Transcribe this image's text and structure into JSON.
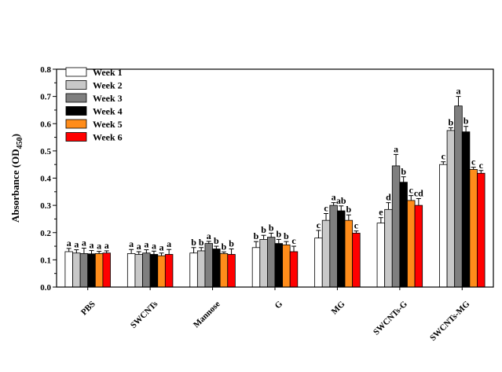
{
  "chart_data": {
    "type": "bar",
    "title": "",
    "xlabel": "",
    "ylabel": "Absorbance (OD",
    "ylabel_subscript": "450",
    "ylabel_close": ")",
    "ylim": [
      0.0,
      0.8
    ],
    "yticks": [
      "0.0",
      "0.1",
      "0.2",
      "0.3",
      "0.4",
      "0.5",
      "0.6",
      "0.7",
      "0.8"
    ],
    "grid": false,
    "legend_position": "top-left",
    "categories": [
      "PBS",
      "SWCNTs",
      "Mannose",
      "G",
      "MG",
      "SWCNTs-G",
      "SWCNTs-MG"
    ],
    "series": [
      {
        "name": "Week 1",
        "color": "#ffffff",
        "values": [
          0.13,
          0.123,
          0.125,
          0.145,
          0.18,
          0.235,
          0.45
        ],
        "errors": [
          0.012,
          0.015,
          0.02,
          0.022,
          0.028,
          0.02,
          0.01
        ],
        "letters": [
          "a",
          "a",
          "b",
          "b",
          "c",
          "e",
          "c"
        ]
      },
      {
        "name": "Week 2",
        "color": "#c8c8c8",
        "values": [
          0.125,
          0.12,
          0.133,
          0.175,
          0.245,
          0.285,
          0.575
        ],
        "errors": [
          0.012,
          0.01,
          0.012,
          0.015,
          0.025,
          0.025,
          0.01
        ],
        "letters": [
          "a",
          "a",
          "b",
          "b",
          "c",
          "d",
          "b"
        ]
      },
      {
        "name": "Week 3",
        "color": "#7f7f7f",
        "values": [
          0.123,
          0.125,
          0.16,
          0.183,
          0.3,
          0.445,
          0.665
        ],
        "errors": [
          0.02,
          0.012,
          0.008,
          0.015,
          0.01,
          0.042,
          0.035
        ],
        "letters": [
          "a",
          "a",
          "a",
          "b",
          "a",
          "a",
          "a"
        ]
      },
      {
        "name": "Week 4",
        "color": "#000000",
        "values": [
          0.122,
          0.12,
          0.14,
          0.16,
          0.28,
          0.385,
          0.57
        ],
        "errors": [
          0.012,
          0.012,
          0.01,
          0.015,
          0.018,
          0.02,
          0.02
        ],
        "letters": [
          "a",
          "a",
          "b",
          "b",
          "ab",
          "b",
          "b"
        ]
      },
      {
        "name": "Week 5",
        "color": "#ff8c1a",
        "values": [
          0.123,
          0.115,
          0.123,
          0.155,
          0.245,
          0.318,
          0.432
        ],
        "errors": [
          0.008,
          0.01,
          0.006,
          0.012,
          0.02,
          0.018,
          0.008
        ],
        "letters": [
          "a",
          "a",
          "b",
          "b",
          "b",
          "c",
          "c"
        ]
      },
      {
        "name": "Week 6",
        "color": "#ff0000",
        "values": [
          0.125,
          0.12,
          0.12,
          0.13,
          0.198,
          0.3,
          0.418
        ],
        "errors": [
          0.008,
          0.018,
          0.02,
          0.02,
          0.008,
          0.025,
          0.01
        ],
        "letters": [
          "a",
          "a",
          "b",
          "c",
          "c",
          "cd",
          "c"
        ]
      }
    ]
  }
}
